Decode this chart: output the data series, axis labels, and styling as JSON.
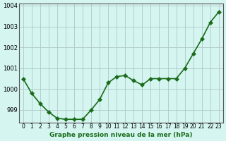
{
  "x": [
    0,
    1,
    2,
    3,
    4,
    5,
    6,
    7,
    8,
    9,
    10,
    11,
    12,
    13,
    14,
    15,
    16,
    17,
    18,
    19,
    20,
    21,
    22,
    23
  ],
  "y": [
    1000.5,
    999.8,
    999.3,
    998.9,
    998.6,
    998.55,
    998.55,
    998.55,
    999.0,
    999.5,
    1000.3,
    1000.6,
    1000.65,
    1000.4,
    1000.2,
    1000.5,
    1000.5,
    1000.5,
    1000.5,
    1001.0,
    1001.7,
    1002.4,
    1003.2,
    1003.7
  ],
  "ylim": [
    998.4,
    1004.1
  ],
  "yticks": [
    999,
    1000,
    1001,
    1002,
    1003,
    1004
  ],
  "xtick_labels": [
    "0",
    "1",
    "2",
    "3",
    "4",
    "5",
    "6",
    "7",
    "8",
    "9",
    "10",
    "11",
    "12",
    "13",
    "14",
    "15",
    "16",
    "17",
    "18",
    "19",
    "20",
    "21",
    "22",
    "23"
  ],
  "line_color": "#1a6b1a",
  "marker_color": "#1a6b1a",
  "bg_color": "#d4f5f0",
  "grid_color": "#b0c8c4",
  "xlabel": "Graphe pression niveau de la mer (hPa)",
  "title_color": "#1a6b1a",
  "marker": "D",
  "marker_size": 3,
  "line_width": 1.2
}
